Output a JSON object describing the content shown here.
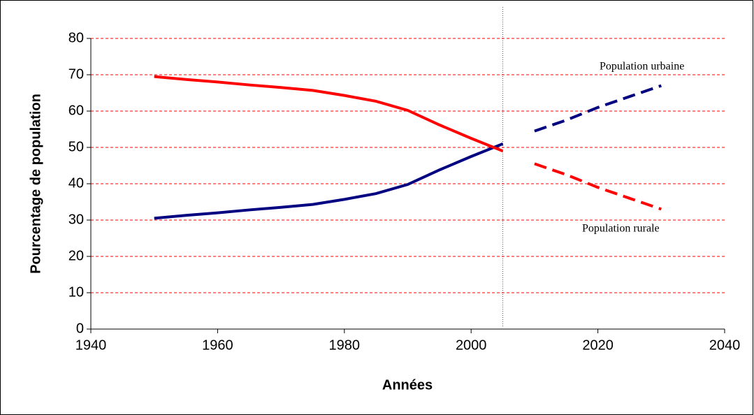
{
  "chart_data": {
    "type": "line",
    "xlabel": "Années",
    "ylabel": "Pourcentage de population",
    "x": [
      1950,
      1955,
      1960,
      1965,
      1970,
      1975,
      1980,
      1985,
      1990,
      1995,
      2000,
      2005,
      2010,
      2015,
      2020,
      2025,
      2030
    ],
    "series": [
      {
        "name": "Population urbaine",
        "color": "#000080",
        "values": [
          30.5,
          31.3,
          32,
          32.8,
          33.5,
          34.3,
          35.7,
          37.3,
          39.8,
          43.8,
          47.5,
          51,
          54.5,
          57.5,
          61,
          64,
          67
        ]
      },
      {
        "name": "Population rurale",
        "color": "#ff0000",
        "values": [
          69.5,
          68.7,
          68,
          67.2,
          66.5,
          65.7,
          64.3,
          62.7,
          60.2,
          56.2,
          52.5,
          49,
          45.5,
          42.5,
          39,
          36,
          33
        ]
      }
    ],
    "projection_start": 2010,
    "reference_year": 2005,
    "xlim": [
      1940,
      2040
    ],
    "xticks": [
      1940,
      1960,
      1980,
      2000,
      2020,
      2040
    ],
    "ylim": [
      0,
      80
    ],
    "yticks": [
      0,
      10,
      20,
      30,
      40,
      50,
      60,
      70,
      80
    ],
    "grid": true,
    "grid_color": "#ff0000"
  }
}
